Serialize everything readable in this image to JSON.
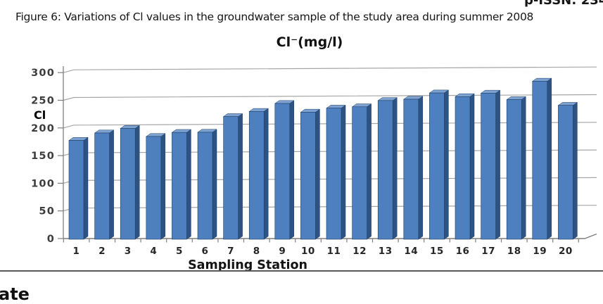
{
  "page": {
    "issn_fragment": "p-ISSN: 234",
    "caption": "Figure 6: Variations of Cl values in the groundwater sample of the study area during summer 2008",
    "footer_fragment": "ate"
  },
  "chart_data": {
    "type": "bar",
    "title": "Cl⁻(mg/l)",
    "y_axis_overlay_label": "Cl",
    "xlabel": "Sampling Station",
    "ylabel": "",
    "categories": [
      "1",
      "2",
      "3",
      "4",
      "5",
      "6",
      "7",
      "8",
      "9",
      "10",
      "11",
      "12",
      "13",
      "14",
      "15",
      "16",
      "17",
      "18",
      "19",
      "20"
    ],
    "values": [
      175,
      188,
      196,
      181,
      188,
      188,
      216,
      225,
      239,
      223,
      230,
      232,
      243,
      245,
      256,
      249,
      255,
      243,
      276,
      232
    ],
    "ylim": [
      0,
      300
    ],
    "yticks": [
      0,
      50,
      100,
      150,
      200,
      250,
      300
    ],
    "grid": true,
    "legend": "none",
    "style": "3d-column",
    "colors": {
      "bar_front": "#4e7fbe",
      "bar_side": "#2d5384",
      "bar_top": "#7da2d1",
      "bar_outline": "#1f3f67",
      "gridline": "#a6a6a6",
      "axis": "#7f7f7f",
      "tick_label": "#3d3d3d",
      "category_label": "#262626"
    }
  }
}
